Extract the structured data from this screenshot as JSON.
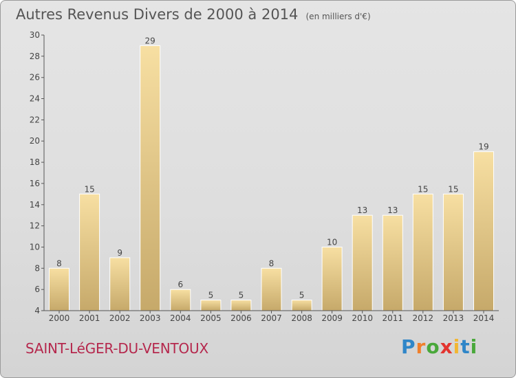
{
  "header": {
    "title": "Autres Revenus Divers de 2000 à 2014",
    "unit": "(en milliers d'€)"
  },
  "footer": {
    "commune": "SAINT-LéGER-DU-VENTOUX",
    "brand": "Proxiti"
  },
  "colors": {
    "bar_light": "#f7dfa2",
    "bar_dark": "#c6a96a",
    "commune_text": "#b5284d",
    "brand_letters": [
      "#2f86c8",
      "#f07f2a",
      "#49a83a",
      "#e3342f",
      "#f2b632",
      "#2f86c8",
      "#49a83a"
    ]
  },
  "chart_data": {
    "type": "bar",
    "categories": [
      "2000",
      "2001",
      "2002",
      "2003",
      "2004",
      "2005",
      "2006",
      "2007",
      "2008",
      "2009",
      "2010",
      "2011",
      "2012",
      "2013",
      "2014"
    ],
    "values": [
      8,
      15,
      9,
      29,
      6,
      5,
      5,
      8,
      5,
      10,
      13,
      13,
      15,
      15,
      19
    ],
    "title": "Autres Revenus Divers de 2000 à 2014",
    "subtitle": "(en milliers d'€)",
    "ylim": [
      4,
      30
    ],
    "yticks": [
      4,
      6,
      8,
      10,
      12,
      14,
      16,
      18,
      20,
      22,
      24,
      26,
      28,
      30
    ],
    "grid": false,
    "legend": "none"
  }
}
